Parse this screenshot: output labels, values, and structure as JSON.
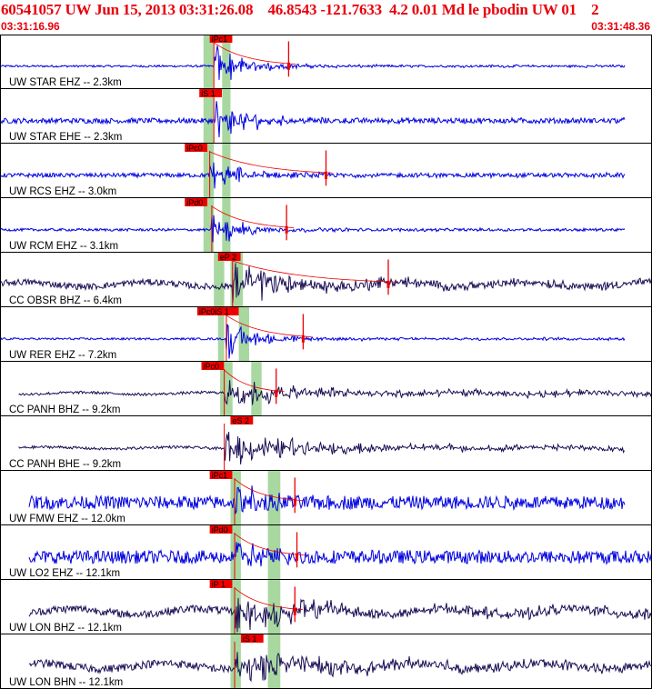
{
  "header": {
    "title": "60541057 UW Jun 15, 2013 03:31:26.08    46.8543 -121.7633  4.2 0.01 Md le pbodin UW 01    2",
    "time_start": "03:31:16.96",
    "time_end": "03:31:48.36"
  },
  "colors": {
    "header_text": "#e8000b",
    "trace_blue": "#0000e0",
    "trace_dark": "#1a0f55",
    "pick_box": "#ee0000",
    "pick_line": "#ee0000",
    "green_band": "#a8d8a0",
    "separator": "#000000"
  },
  "chart_data": {
    "type": "line",
    "x_unit": "seconds after 03:31:16.96",
    "x_range": [
      0,
      31.4
    ],
    "traces": [
      {
        "label": "UW STAR EHZ -- 2.3km",
        "color": "blue",
        "amplitude": 0.9,
        "noise": 0.04,
        "onset": 10.3,
        "pick": "iPc1",
        "pick_time": 10.1,
        "marker_time": 13.9,
        "green_bands": [
          [
            9.8,
            10.3
          ],
          [
            10.7,
            11.1
          ]
        ],
        "span": [
          0.0,
          30.1
        ]
      },
      {
        "label": "UW STAR EHE -- 2.3km",
        "color": "blue",
        "amplitude": 0.95,
        "noise": 0.1,
        "onset": 10.3,
        "pick": "iS 1",
        "pick_time": 9.6,
        "green_bands": [
          [
            9.8,
            10.3
          ],
          [
            10.7,
            11.1
          ]
        ],
        "span": [
          0.0,
          30.1
        ]
      },
      {
        "label": "UW RCS EHZ -- 3.0km",
        "color": "blue",
        "amplitude": 0.7,
        "noise": 0.08,
        "onset": 10.1,
        "pick": "iPc0",
        "pick_time": 8.9,
        "marker_time": 15.7,
        "green_bands": [
          [
            9.8,
            10.3
          ],
          [
            10.7,
            11.1
          ]
        ],
        "span": [
          0.0,
          30.1
        ]
      },
      {
        "label": "UW RCM EHZ -- 3.1km",
        "color": "blue",
        "amplitude": 0.8,
        "noise": 0.05,
        "onset": 10.2,
        "pick": "iPd0",
        "pick_time": 8.9,
        "marker_time": 13.8,
        "green_bands": [
          [
            9.8,
            10.3
          ],
          [
            10.7,
            11.1
          ]
        ],
        "span": [
          0.0,
          30.1
        ]
      },
      {
        "label": "CC OBSR BHZ -- 6.4km",
        "color": "dark",
        "amplitude": 0.8,
        "noise": 0.12,
        "onset": 11.2,
        "pick": "eP 2",
        "pick_time": 10.5,
        "marker_time": 18.7,
        "green_bands": [
          [
            10.3,
            10.8
          ],
          [
            11.1,
            11.7
          ]
        ],
        "span": [
          0.0,
          31.4
        ]
      },
      {
        "label": "UW RER EHZ -- 7.2km",
        "color": "blue",
        "amplitude": 0.85,
        "noise": 0.04,
        "onset": 10.9,
        "pick": "iPc0iS 1",
        "pick_time": 9.5,
        "marker_time": 14.6,
        "green_bands": [
          [
            10.5,
            10.8
          ],
          [
            11.5,
            12.0
          ]
        ],
        "span": [
          0.0,
          30.1
        ]
      },
      {
        "label": "CC PANH BHZ -- 9.2km",
        "color": "dark",
        "amplitude": 0.65,
        "noise": 0.05,
        "onset": 10.8,
        "pick": "iPc0",
        "pick_time": 9.7,
        "marker_time": 13.3,
        "green_bands": [
          [
            10.6,
            11.2
          ],
          [
            12.1,
            12.6
          ]
        ],
        "span": [
          0.9,
          31.4
        ]
      },
      {
        "label": "CC PANH BHE -- 9.2km",
        "color": "dark",
        "amplitude": 0.7,
        "noise": 0.05,
        "onset": 10.8,
        "pick": "eS 2",
        "pick_time": 11.1,
        "green_bands": [],
        "span": [
          0.9,
          30.1
        ]
      },
      {
        "label": "UW FMW EHZ -- 12.0km",
        "color": "blue",
        "amplitude": 0.9,
        "noise": 0.25,
        "onset": 11.3,
        "pick": "iPc1",
        "pick_time": 10.1,
        "marker_time": 14.2,
        "green_bands": [
          [
            11.1,
            11.6
          ],
          [
            12.9,
            13.5
          ]
        ],
        "span": [
          1.4,
          30.1
        ]
      },
      {
        "label": "UW LO2 EHZ -- 12.1km",
        "color": "blue",
        "amplitude": 0.75,
        "noise": 0.25,
        "onset": 11.3,
        "pick": "iPd0",
        "pick_time": 10.1,
        "marker_time": 14.3,
        "green_bands": [
          [
            11.1,
            11.6
          ],
          [
            12.9,
            13.5
          ]
        ],
        "span": [
          1.4,
          31.4
        ]
      },
      {
        "label": "UW LON BHZ -- 12.1km",
        "color": "dark",
        "amplitude": 0.9,
        "noise": 0.15,
        "onset": 11.3,
        "pick": "iP 1",
        "pick_time": 10.1,
        "marker_time": 14.2,
        "green_bands": [
          [
            11.1,
            11.6
          ],
          [
            12.9,
            13.5
          ]
        ],
        "span": [
          1.4,
          31.4
        ]
      },
      {
        "label": "UW LON BHN -- 12.1km",
        "color": "dark",
        "amplitude": 0.8,
        "noise": 0.15,
        "onset": 11.3,
        "pick": "iS 1",
        "pick_time": 11.6,
        "green_bands": [
          [
            11.1,
            11.6
          ],
          [
            12.9,
            13.5
          ]
        ],
        "span": [
          1.4,
          31.4
        ]
      }
    ]
  }
}
